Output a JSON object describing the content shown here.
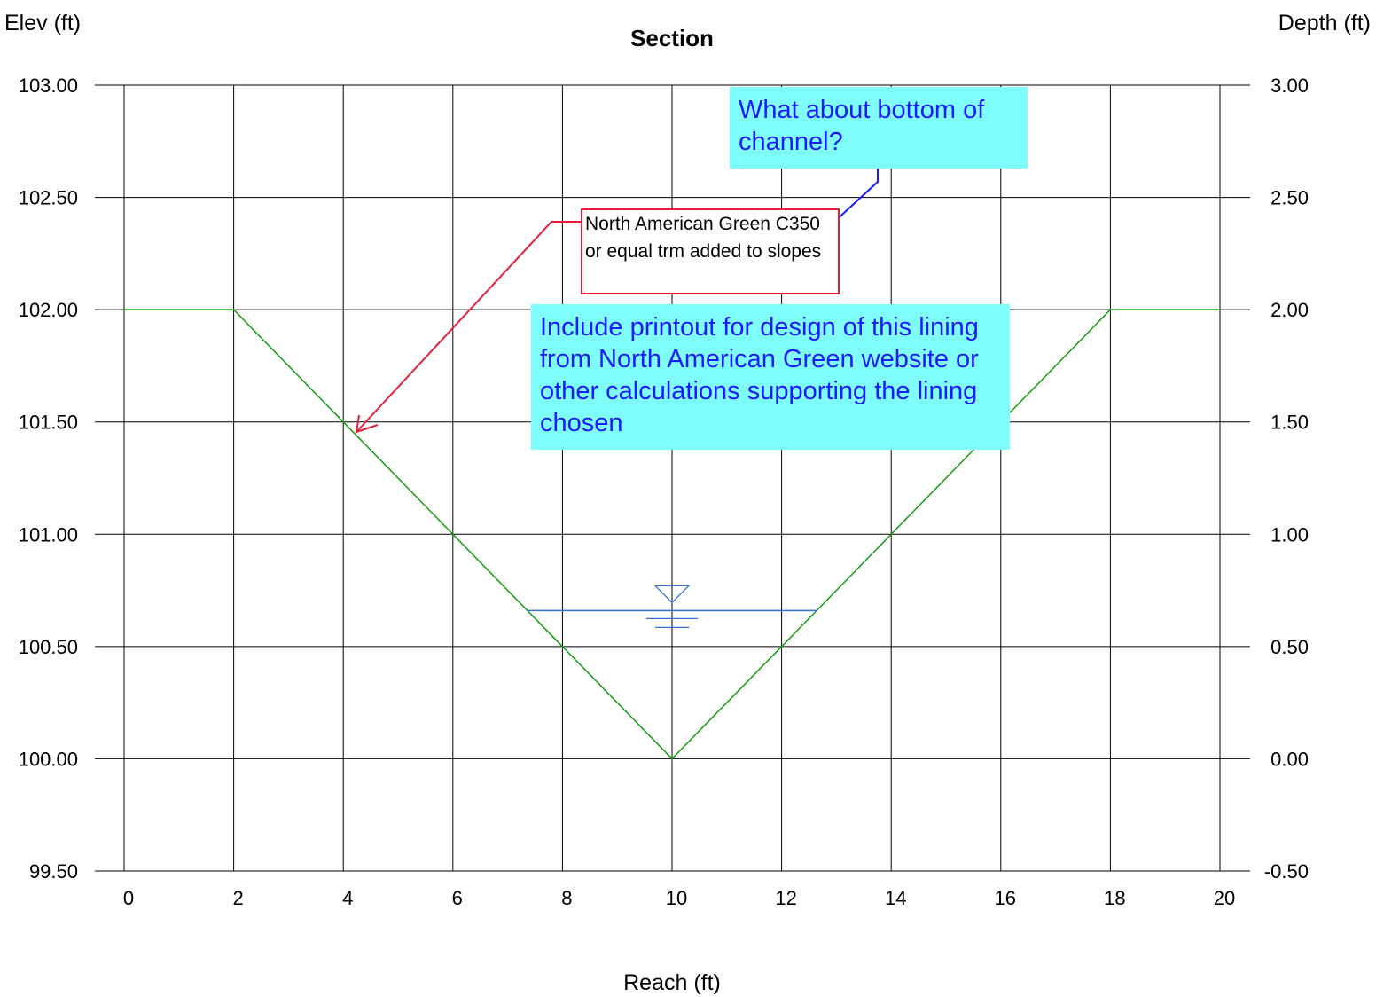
{
  "chart_data": {
    "type": "line",
    "title": "Section",
    "xlabel": "Reach (ft)",
    "ylabel_left": "Elev (ft)",
    "ylabel_right": "Depth (ft)",
    "xlim": [
      0,
      20
    ],
    "ylim": [
      99.5,
      103.0
    ],
    "depth_lim": [
      -0.5,
      3.0
    ],
    "grid": true,
    "x_ticks": [
      "0",
      "2",
      "4",
      "6",
      "8",
      "10",
      "12",
      "14",
      "16",
      "18",
      "20"
    ],
    "y_ticks_left": [
      "103.00",
      "102.50",
      "102.00",
      "101.50",
      "101.00",
      "100.50",
      "100.00",
      "99.50"
    ],
    "y_ticks_right": [
      "3.00",
      "2.50",
      "2.00",
      "1.50",
      "1.00",
      "0.50",
      "0.00",
      "-0.50"
    ],
    "series": [
      {
        "color": "#129e12",
        "x": [
          0,
          2,
          10,
          18,
          20
        ],
        "y": [
          102.0,
          102.0,
          100.0,
          102.0,
          102.0
        ]
      },
      {
        "color": "#3a6fd8",
        "x": [
          7.35,
          12.65
        ],
        "y": [
          100.66,
          100.66
        ]
      }
    ],
    "water_surface_symbol": {
      "x": 10,
      "y": 100.66
    }
  },
  "annotations": {
    "bottom_note": "What about bottom of channel?",
    "lining_note": "North American Green C350 or equal trm added to slopes",
    "printout_note": "Include printout for design of this lining from North American Green website or other calculations supporting the lining chosen"
  },
  "colors": {
    "callout_fill": "#7ffcfc",
    "callout_text": "#1a1aff",
    "red_callout": "#e0203a",
    "blue_arrow": "#1a1aff"
  }
}
